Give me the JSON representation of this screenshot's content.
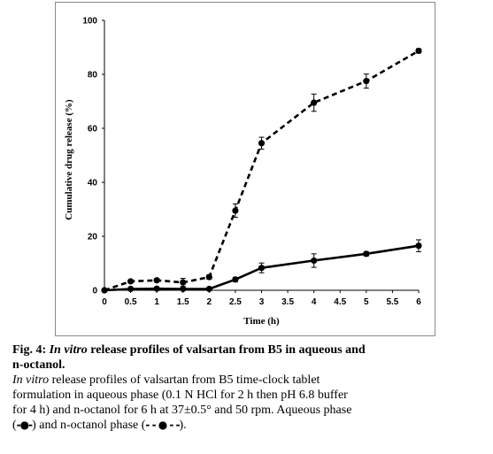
{
  "chart_data": {
    "type": "line",
    "xlabel": "Time (h)",
    "ylabel": "Cumulative drug release (%)",
    "xlim": [
      0,
      6
    ],
    "ylim": [
      0,
      100
    ],
    "x_ticks": [
      "0",
      "0.5",
      "1",
      "1.5",
      "2",
      "2.5",
      "3",
      "3.5",
      "4",
      "4.5",
      "5",
      "5.5",
      "6"
    ],
    "y_ticks": [
      "0",
      "20",
      "40",
      "60",
      "80",
      "100"
    ],
    "grid": false,
    "series": [
      {
        "style": "solid",
        "color": "#000000",
        "x": [
          0,
          0.5,
          1,
          1.5,
          2,
          2.5,
          3,
          4,
          5,
          6
        ],
        "y": [
          0,
          0.5,
          0.6,
          0.5,
          0.5,
          4,
          8.3,
          11,
          13.5,
          16.5
        ],
        "err": [
          0,
          0.3,
          0.3,
          0.3,
          0.3,
          0.8,
          1.8,
          2.5,
          0.8,
          2.2
        ]
      },
      {
        "style": "dashed",
        "color": "#000000",
        "x": [
          0,
          0.5,
          1,
          1.5,
          2,
          2.5,
          3,
          4,
          5,
          6
        ],
        "y": [
          0,
          3.3,
          3.7,
          2.9,
          4.9,
          29.5,
          54.5,
          69.5,
          77.5,
          88.7
        ],
        "err": [
          0,
          0.5,
          0.5,
          1.5,
          0.8,
          2.5,
          2.2,
          3.2,
          2.6,
          0.8
        ]
      }
    ]
  },
  "caption": {
    "line1_prefix": "Fig. 4: ",
    "line1_italic": "In vitro",
    "line1_rest": " release profiles of valsartan from B5 in aqueous and",
    "line2": "n-octanol.",
    "line3_italic": "In vitro",
    "line3_rest": " release profiles of valsartan from B5 time-clock tablet",
    "line4": "formulation in aqueous phase (0.1 N HCl for 2 h then pH 6.8 buffer",
    "line5": "for 4 h) and n-octanol for 6 h at 37±0.5° and 50 rpm. Aqueous phase",
    "line6_open": "(",
    "aqueous_glyph": "-●-",
    "line6_mid": ") and n-octanol phase (",
    "octanol_glyph": "- - ● - -",
    "line6_close": ")."
  }
}
